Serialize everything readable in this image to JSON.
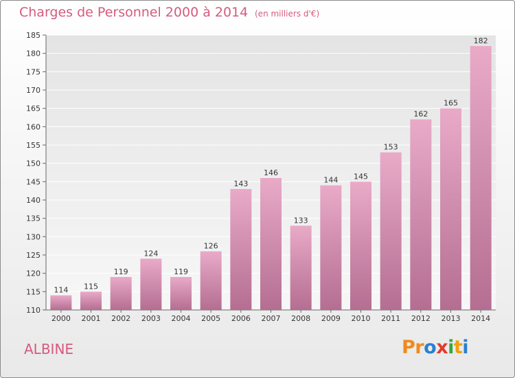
{
  "header": {
    "title": "Charges de Personnel 2000 à 2014",
    "subtitle": "(en milliers d'€)"
  },
  "footer": {
    "commune": "ALBINE",
    "logo_letters": [
      "P",
      "r",
      "o",
      "x",
      "i",
      "t",
      "i"
    ]
  },
  "colors": {
    "title": "#d65a7e",
    "bar_light": "#e9aac8",
    "bar_dark": "#b46e91",
    "logo": [
      "#f08a1a",
      "#f08a1a",
      "#2b7fcf",
      "#e23a2a",
      "#3aa640",
      "#f0a010",
      "#2b7fcf"
    ]
  },
  "chart_data": {
    "type": "bar",
    "title": "Charges de Personnel 2000 à 2014",
    "subtitle": "(en milliers d'€)",
    "xlabel": "",
    "ylabel": "",
    "categories": [
      "2000",
      "2001",
      "2002",
      "2003",
      "2004",
      "2005",
      "2006",
      "2007",
      "2008",
      "2009",
      "2010",
      "2011",
      "2012",
      "2013",
      "2014"
    ],
    "values": [
      114,
      115,
      119,
      124,
      119,
      126,
      143,
      146,
      133,
      144,
      145,
      153,
      162,
      165,
      182
    ],
    "ylim": [
      110,
      185
    ],
    "yticks": [
      110,
      115,
      120,
      125,
      130,
      135,
      140,
      145,
      150,
      155,
      160,
      165,
      170,
      175,
      180,
      185
    ],
    "grid": true
  }
}
